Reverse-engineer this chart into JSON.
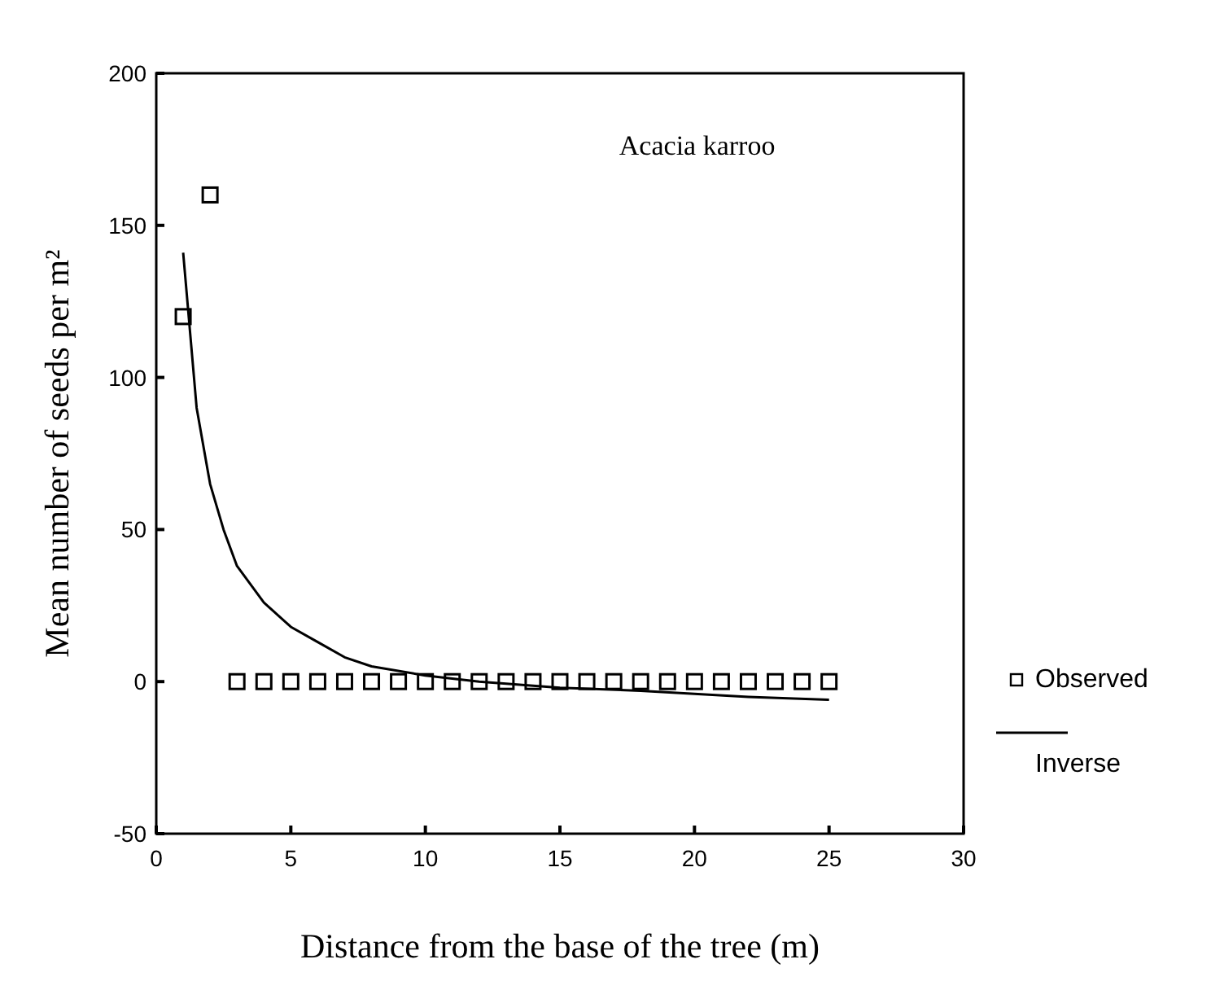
{
  "chart_data": {
    "type": "scatter",
    "xlabel": "Distance from the base of the tree (m)",
    "ylabel": "Mean number of seeds per m²",
    "annotations": [
      "Acacia karroo"
    ],
    "xlim": [
      0,
      30
    ],
    "xticks": [
      0,
      5,
      10,
      15,
      20,
      25,
      30
    ],
    "ylim": [
      -50,
      200
    ],
    "yticks": [
      -50,
      0,
      50,
      100,
      150,
      200
    ],
    "grid": false,
    "legend": "right",
    "series": [
      {
        "name": "Observed",
        "marker": "square",
        "color": "#000000",
        "x": [
          1,
          2,
          3,
          4,
          5,
          6,
          7,
          8,
          9,
          10,
          11,
          12,
          13,
          14,
          15,
          16,
          17,
          18,
          19,
          20,
          21,
          22,
          23,
          24,
          25
        ],
        "values": [
          120,
          160,
          0,
          0,
          0,
          0,
          0,
          0,
          0,
          0,
          0,
          0,
          0,
          0,
          0,
          0,
          0,
          0,
          0,
          0,
          0,
          0,
          0,
          0,
          0
        ]
      },
      {
        "name": "Inverse",
        "type": "line",
        "marker": "none",
        "color": "#000000",
        "x": [
          1,
          1.5,
          2,
          2.5,
          3,
          4,
          5,
          6,
          7,
          8,
          10,
          12,
          15,
          18,
          20,
          22,
          25
        ],
        "values": [
          141,
          90,
          65,
          50,
          38,
          26,
          18,
          13,
          8,
          5,
          2,
          0,
          -2,
          -3,
          -4,
          -5,
          -6
        ]
      }
    ]
  }
}
